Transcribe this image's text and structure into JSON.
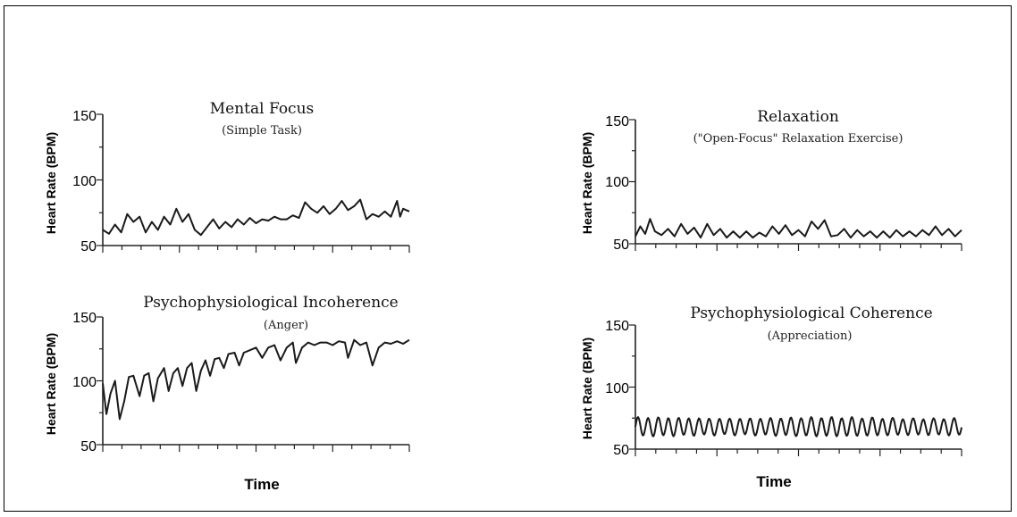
{
  "figure": {
    "x_axis_label_left": "Time",
    "x_axis_label_right": "Time"
  },
  "chart_data": [
    {
      "type": "line",
      "title": "Mental Focus",
      "subtitle": "(Simple Task)",
      "ylabel": "Heart Rate (BPM)",
      "xlabel": "",
      "yticks": [
        "150",
        "100",
        "50"
      ],
      "ylim": [
        50,
        150
      ],
      "xlim": [
        0,
        1
      ],
      "grid": false,
      "color": "#1a1a1a",
      "points": [
        [
          0.0,
          62
        ],
        [
          0.02,
          59
        ],
        [
          0.04,
          66
        ],
        [
          0.06,
          60
        ],
        [
          0.08,
          74
        ],
        [
          0.1,
          68
        ],
        [
          0.12,
          72
        ],
        [
          0.14,
          60
        ],
        [
          0.16,
          68
        ],
        [
          0.18,
          62
        ],
        [
          0.2,
          72
        ],
        [
          0.22,
          66
        ],
        [
          0.24,
          78
        ],
        [
          0.26,
          68
        ],
        [
          0.28,
          74
        ],
        [
          0.3,
          62
        ],
        [
          0.32,
          58
        ],
        [
          0.34,
          64
        ],
        [
          0.36,
          70
        ],
        [
          0.38,
          63
        ],
        [
          0.4,
          68
        ],
        [
          0.42,
          64
        ],
        [
          0.44,
          70
        ],
        [
          0.46,
          66
        ],
        [
          0.48,
          71
        ],
        [
          0.5,
          67
        ],
        [
          0.52,
          70
        ],
        [
          0.54,
          69
        ],
        [
          0.56,
          72
        ],
        [
          0.58,
          70
        ],
        [
          0.6,
          70
        ],
        [
          0.62,
          73
        ],
        [
          0.64,
          71
        ],
        [
          0.66,
          83
        ],
        [
          0.68,
          78
        ],
        [
          0.7,
          75
        ],
        [
          0.72,
          80
        ],
        [
          0.74,
          74
        ],
        [
          0.76,
          78
        ],
        [
          0.78,
          84
        ],
        [
          0.8,
          77
        ],
        [
          0.82,
          80
        ],
        [
          0.84,
          85
        ],
        [
          0.86,
          70
        ],
        [
          0.88,
          74
        ],
        [
          0.9,
          72
        ],
        [
          0.92,
          76
        ],
        [
          0.94,
          72
        ],
        [
          0.96,
          84
        ],
        [
          0.97,
          72
        ],
        [
          0.98,
          78
        ],
        [
          1.0,
          76
        ]
      ]
    },
    {
      "type": "line",
      "title": "Relaxation",
      "subtitle": "(\"Open-Focus\" Relaxation Exercise)",
      "ylabel": "Heart Rate (BPM)",
      "xlabel": "",
      "yticks": [
        "150",
        "100",
        "50"
      ],
      "ylim": [
        50,
        150
      ],
      "xlim": [
        0,
        1
      ],
      "grid": false,
      "color": "#1a1a1a",
      "points": [
        [
          0.0,
          56
        ],
        [
          0.015,
          64
        ],
        [
          0.03,
          58
        ],
        [
          0.045,
          70
        ],
        [
          0.06,
          60
        ],
        [
          0.08,
          57
        ],
        [
          0.1,
          62
        ],
        [
          0.12,
          56
        ],
        [
          0.14,
          66
        ],
        [
          0.16,
          58
        ],
        [
          0.18,
          63
        ],
        [
          0.2,
          55
        ],
        [
          0.22,
          66
        ],
        [
          0.24,
          57
        ],
        [
          0.26,
          62
        ],
        [
          0.28,
          55
        ],
        [
          0.3,
          60
        ],
        [
          0.32,
          55
        ],
        [
          0.34,
          60
        ],
        [
          0.36,
          55
        ],
        [
          0.38,
          59
        ],
        [
          0.4,
          56
        ],
        [
          0.42,
          64
        ],
        [
          0.44,
          58
        ],
        [
          0.46,
          65
        ],
        [
          0.48,
          57
        ],
        [
          0.5,
          61
        ],
        [
          0.52,
          56
        ],
        [
          0.54,
          68
        ],
        [
          0.56,
          62
        ],
        [
          0.58,
          69
        ],
        [
          0.6,
          56
        ],
        [
          0.62,
          57
        ],
        [
          0.64,
          62
        ],
        [
          0.66,
          55
        ],
        [
          0.68,
          61
        ],
        [
          0.7,
          56
        ],
        [
          0.72,
          60
        ],
        [
          0.74,
          55
        ],
        [
          0.76,
          60
        ],
        [
          0.78,
          55
        ],
        [
          0.8,
          61
        ],
        [
          0.82,
          56
        ],
        [
          0.84,
          60
        ],
        [
          0.86,
          56
        ],
        [
          0.88,
          61
        ],
        [
          0.9,
          57
        ],
        [
          0.92,
          64
        ],
        [
          0.94,
          57
        ],
        [
          0.96,
          62
        ],
        [
          0.98,
          56
        ],
        [
          1.0,
          61
        ]
      ]
    },
    {
      "type": "line",
      "title": "Psychophysiological Incoherence",
      "subtitle": "(Anger)",
      "ylabel": "Heart Rate (BPM)",
      "xlabel": "",
      "yticks": [
        "150",
        "100",
        "50"
      ],
      "ylim": [
        50,
        150
      ],
      "xlim": [
        0,
        1
      ],
      "grid": false,
      "color": "#1a1a1a",
      "points": [
        [
          0.0,
          98
        ],
        [
          0.012,
          74
        ],
        [
          0.025,
          90
        ],
        [
          0.04,
          100
        ],
        [
          0.055,
          70
        ],
        [
          0.07,
          84
        ],
        [
          0.085,
          103
        ],
        [
          0.1,
          104
        ],
        [
          0.12,
          88
        ],
        [
          0.135,
          104
        ],
        [
          0.15,
          106
        ],
        [
          0.165,
          84
        ],
        [
          0.18,
          102
        ],
        [
          0.2,
          110
        ],
        [
          0.215,
          92
        ],
        [
          0.23,
          106
        ],
        [
          0.245,
          110
        ],
        [
          0.26,
          96
        ],
        [
          0.275,
          110
        ],
        [
          0.29,
          114
        ],
        [
          0.305,
          92
        ],
        [
          0.32,
          108
        ],
        [
          0.335,
          116
        ],
        [
          0.35,
          104
        ],
        [
          0.365,
          117
        ],
        [
          0.38,
          118
        ],
        [
          0.395,
          110
        ],
        [
          0.41,
          121
        ],
        [
          0.43,
          122
        ],
        [
          0.445,
          112
        ],
        [
          0.46,
          122
        ],
        [
          0.48,
          124
        ],
        [
          0.5,
          126
        ],
        [
          0.52,
          118
        ],
        [
          0.54,
          126
        ],
        [
          0.56,
          128
        ],
        [
          0.58,
          116
        ],
        [
          0.6,
          126
        ],
        [
          0.62,
          130
        ],
        [
          0.63,
          114
        ],
        [
          0.65,
          126
        ],
        [
          0.67,
          130
        ],
        [
          0.69,
          128
        ],
        [
          0.71,
          130
        ],
        [
          0.73,
          130
        ],
        [
          0.75,
          128
        ],
        [
          0.77,
          131
        ],
        [
          0.79,
          130
        ],
        [
          0.8,
          118
        ],
        [
          0.82,
          132
        ],
        [
          0.84,
          128
        ],
        [
          0.86,
          130
        ],
        [
          0.88,
          112
        ],
        [
          0.9,
          126
        ],
        [
          0.92,
          130
        ],
        [
          0.94,
          129
        ],
        [
          0.96,
          131
        ],
        [
          0.98,
          129
        ],
        [
          1.0,
          132
        ]
      ]
    },
    {
      "type": "line",
      "title": "Psychophysiological Coherence",
      "subtitle": "(Appreciation)",
      "ylabel": "Heart Rate (BPM)",
      "xlabel": "",
      "yticks": [
        "150",
        "100",
        "50"
      ],
      "ylim": [
        50,
        150
      ],
      "xlim": [
        0,
        1
      ],
      "grid": false,
      "color": "#1a1a1a",
      "waveform": {
        "baseline": 68,
        "amplitude": 7,
        "cycles": 32,
        "jitter": 2
      }
    }
  ]
}
